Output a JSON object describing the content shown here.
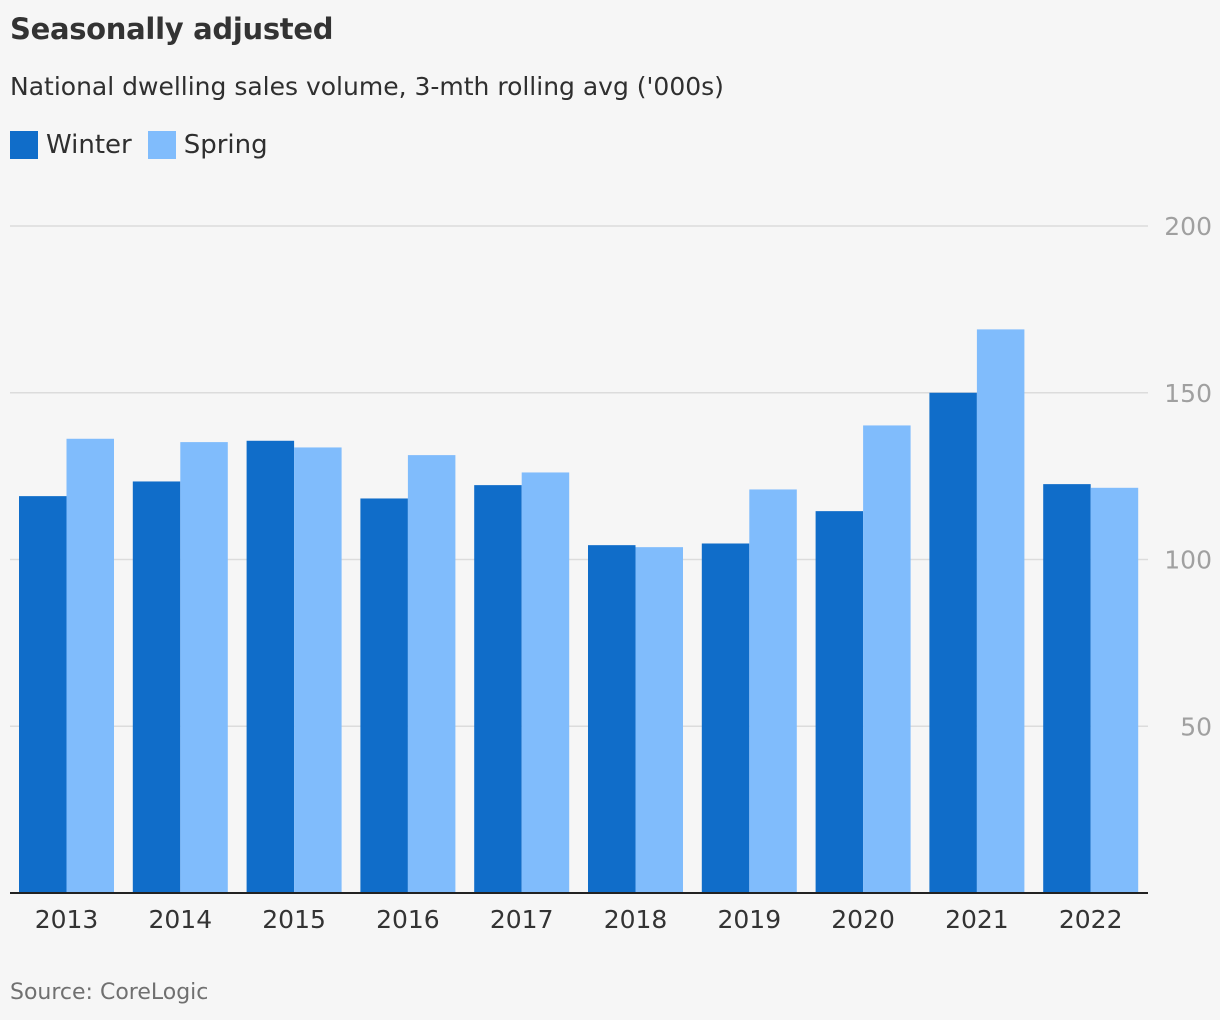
{
  "header": {
    "title": "Seasonally adjusted",
    "subtitle": "National dwelling sales volume, 3-mth rolling avg ('000s)"
  },
  "legend": {
    "items": [
      {
        "label": "Winter",
        "color": "#106dc9"
      },
      {
        "label": "Spring",
        "color": "#80bcfc"
      }
    ]
  },
  "footer": {
    "source": "Source: CoreLogic"
  },
  "chart_data": {
    "type": "bar",
    "title": "Seasonally adjusted",
    "subtitle": "National dwelling sales volume, 3-mth rolling avg ('000s)",
    "categories": [
      "2013",
      "2014",
      "2015",
      "2016",
      "2017",
      "2018",
      "2019",
      "2020",
      "2021",
      "2022"
    ],
    "series": [
      {
        "name": "Winter",
        "color": "#106dc9",
        "values": [
          119,
          123.4,
          135.6,
          118.3,
          122.3,
          104.3,
          104.8,
          114.5,
          150,
          122.6
        ]
      },
      {
        "name": "Spring",
        "color": "#80bcfc",
        "values": [
          136.2,
          135.2,
          133.6,
          131.3,
          126.1,
          103.7,
          121,
          140.2,
          169,
          121.5
        ]
      }
    ],
    "ylim": [
      0,
      200
    ],
    "yticks": [
      50,
      100,
      150,
      200
    ],
    "xlabel": "",
    "ylabel": "",
    "grid": true,
    "legend_position": "top-left",
    "axis_side": "right"
  }
}
